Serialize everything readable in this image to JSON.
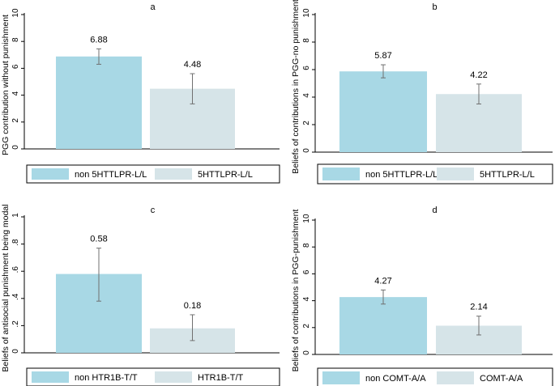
{
  "colors": {
    "bar_dark": "#a8d8e5",
    "bar_light": "#d6e4e8",
    "panel_bg": "#ffffff",
    "axis": "#000000",
    "error_bar": "#707070"
  },
  "chart_data": [
    {
      "type": "bar",
      "panel_letter": "a",
      "title": "a",
      "ylabel": "PGG contribution without punishment",
      "xlabel": "",
      "categories": [
        "non 5HTTLPR-L/L",
        "5HTTLPR-L/L"
      ],
      "values": [
        6.88,
        4.48
      ],
      "value_labels": [
        "6.88",
        "4.48"
      ],
      "error_low": [
        6.3,
        3.35
      ],
      "error_high": [
        7.45,
        5.6
      ],
      "ylim": [
        0,
        10
      ],
      "yticks": [
        0,
        2,
        4,
        6,
        8,
        10
      ],
      "ytick_labels": [
        "0",
        "2",
        "4",
        "6",
        "8",
        "10"
      ],
      "legend": [
        "non 5HTTLPR-L/L",
        "5HTTLPR-L/L"
      ],
      "legend_position": "bottom",
      "grid": false
    },
    {
      "type": "bar",
      "panel_letter": "b",
      "title": "b",
      "ylabel": "Beliefs of contributions in PGG-no punishment",
      "xlabel": "",
      "categories": [
        "non 5HTTLPR-L/L",
        "5HTTLPR-L/L"
      ],
      "values": [
        5.87,
        4.22
      ],
      "value_labels": [
        "5.87",
        "4.22"
      ],
      "error_low": [
        5.4,
        3.5
      ],
      "error_high": [
        6.35,
        4.95
      ],
      "ylim": [
        0,
        10
      ],
      "yticks": [
        0,
        2,
        4,
        6,
        8,
        10
      ],
      "ytick_labels": [
        "0",
        "2",
        "4",
        "6",
        "8",
        "10"
      ],
      "legend": [
        "non 5HTTLPR-L/L",
        "5HTTLPR-L/L"
      ],
      "legend_position": "bottom",
      "grid": false
    },
    {
      "type": "bar",
      "panel_letter": "c",
      "title": "c",
      "ylabel": "Beliefs of antisocial punishment being modal",
      "xlabel": "",
      "categories": [
        "non HTR1B-T/T",
        "HTR1B-T/T"
      ],
      "values": [
        0.58,
        0.18
      ],
      "value_labels": [
        "0.58",
        "0.18"
      ],
      "error_low": [
        0.38,
        0.09
      ],
      "error_high": [
        0.77,
        0.28
      ],
      "ylim": [
        0,
        1
      ],
      "yticks": [
        0,
        0.2,
        0.4,
        0.6,
        0.8,
        1
      ],
      "ytick_labels": [
        "0",
        ".2",
        ".4",
        ".6",
        ".8",
        "1"
      ],
      "legend": [
        "non HTR1B-T/T",
        "HTR1B-T/T"
      ],
      "legend_position": "bottom",
      "grid": false
    },
    {
      "type": "bar",
      "panel_letter": "d",
      "title": "d",
      "ylabel": "Beliefs of contributions in PGG-punishment",
      "xlabel": "",
      "categories": [
        "non COMT-A/A",
        "COMT-A/A"
      ],
      "values": [
        4.27,
        2.14
      ],
      "value_labels": [
        "4.27",
        "2.14"
      ],
      "error_low": [
        3.75,
        1.45
      ],
      "error_high": [
        4.8,
        2.85
      ],
      "ylim": [
        0,
        10
      ],
      "yticks": [
        0,
        2,
        4,
        6,
        8,
        10
      ],
      "ytick_labels": [
        "0",
        "2",
        "4",
        "6",
        "8",
        "10"
      ],
      "legend": [
        "non COMT-A/A",
        "COMT-A/A"
      ],
      "legend_position": "bottom",
      "grid": false
    }
  ]
}
